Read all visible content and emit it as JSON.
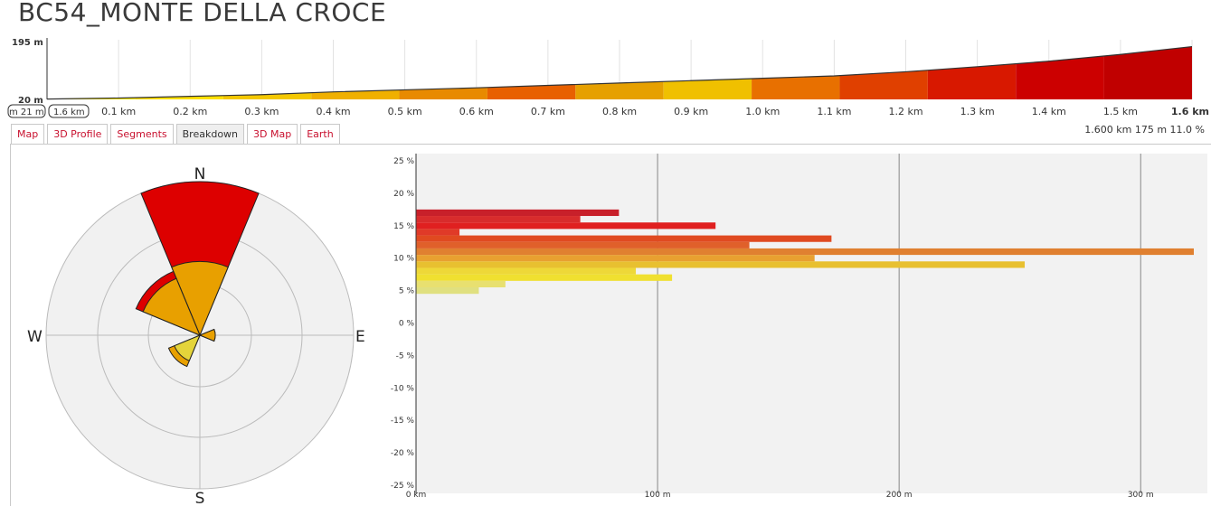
{
  "title": "BC54_MONTE DELLA CROCE",
  "profile": {
    "y_max_label": "195 m",
    "y_min_label": "20 m",
    "range_start_label": "m 21 m",
    "range_end_label": "1.6 km",
    "x_ticks": [
      "0.1 km",
      "0.2 km",
      "0.3 km",
      "0.4 km",
      "0.5 km",
      "0.6 km",
      "0.7 km",
      "0.8 km",
      "0.9 km",
      "1.0 km",
      "1.1 km",
      "1.2 km",
      "1.3 km",
      "1.4 km",
      "1.5 km",
      "1.6 km"
    ],
    "elevation_points": [
      [
        0,
        21
      ],
      [
        0.1,
        24
      ],
      [
        0.2,
        29
      ],
      [
        0.3,
        34
      ],
      [
        0.4,
        42
      ],
      [
        0.5,
        48
      ],
      [
        0.6,
        54
      ],
      [
        0.7,
        61
      ],
      [
        0.8,
        68
      ],
      [
        0.9,
        75
      ],
      [
        1.0,
        82
      ],
      [
        1.1,
        89
      ],
      [
        1.2,
        101
      ],
      [
        1.3,
        116
      ],
      [
        1.4,
        132
      ],
      [
        1.5,
        152
      ],
      [
        1.6,
        175
      ]
    ],
    "segment_colors": [
      "#ffef00",
      "#ffe000",
      "#f4c800",
      "#f0b000",
      "#e88a00",
      "#e86000",
      "#e6a000",
      "#f0c000",
      "#e87000",
      "#e04000",
      "#d81800",
      "#cc0000",
      "#c00000"
    ]
  },
  "tabs": [
    "Map",
    "3D Profile",
    "Segments",
    "Breakdown",
    "3D Map",
    "Earth"
  ],
  "active_tab": "Breakdown",
  "stats": "1.600 km 175 m 11.0 %",
  "rose": {
    "labels": {
      "n": "N",
      "e": "E",
      "s": "S",
      "w": "W"
    },
    "sectors": [
      {
        "dir": "N",
        "outer_value": 1.0,
        "inner_value": 0.48,
        "outer_color": "#dd0000",
        "inner_color": "#e8a000"
      },
      {
        "dir": "NW",
        "outer_value": 0.45,
        "inner_value": 0.4,
        "outer_color": "#dd0000",
        "inner_color": "#e8a000"
      },
      {
        "dir": "E",
        "outer_value": 0.1,
        "inner_value": 0.1,
        "outer_color": "#e8a000",
        "inner_color": "#e8a000"
      },
      {
        "dir": "SW",
        "outer_value": 0.22,
        "inner_value": 0.18,
        "outer_color": "#e8a000",
        "inner_color": "#e4d43a"
      }
    ]
  },
  "chart_data": {
    "type": "bar",
    "orientation": "horizontal",
    "y_ticks": [
      "25 %",
      "20 %",
      "15 %",
      "10 %",
      "5 %",
      "0 %",
      "-5 %",
      "-10 %",
      "-15 %",
      "-20 %",
      "-25 %"
    ],
    "x_ticks": [
      "0 km",
      "100 m",
      "200 m",
      "300 m"
    ],
    "xlim": [
      0,
      325
    ],
    "ylim": [
      -25,
      25
    ],
    "bars": [
      {
        "grade": 17,
        "length": 84,
        "color": "#c8202a"
      },
      {
        "grade": 16,
        "length": 68,
        "color": "#d82c2c"
      },
      {
        "grade": 15,
        "length": 124,
        "color": "#e02020"
      },
      {
        "grade": 14,
        "length": 18,
        "color": "#e03a28"
      },
      {
        "grade": 13,
        "length": 172,
        "color": "#e04a20"
      },
      {
        "grade": 12,
        "length": 138,
        "color": "#e0602a"
      },
      {
        "grade": 11,
        "length": 322,
        "color": "#e08030"
      },
      {
        "grade": 10,
        "length": 165,
        "color": "#e8a030"
      },
      {
        "grade": 9,
        "length": 252,
        "color": "#e8c030"
      },
      {
        "grade": 8,
        "length": 91,
        "color": "#eed838"
      },
      {
        "grade": 7,
        "length": 106,
        "color": "#f0e030"
      },
      {
        "grade": 6,
        "length": 37,
        "color": "#e8e070"
      },
      {
        "grade": 5,
        "length": 26,
        "color": "#e0e080"
      }
    ]
  }
}
